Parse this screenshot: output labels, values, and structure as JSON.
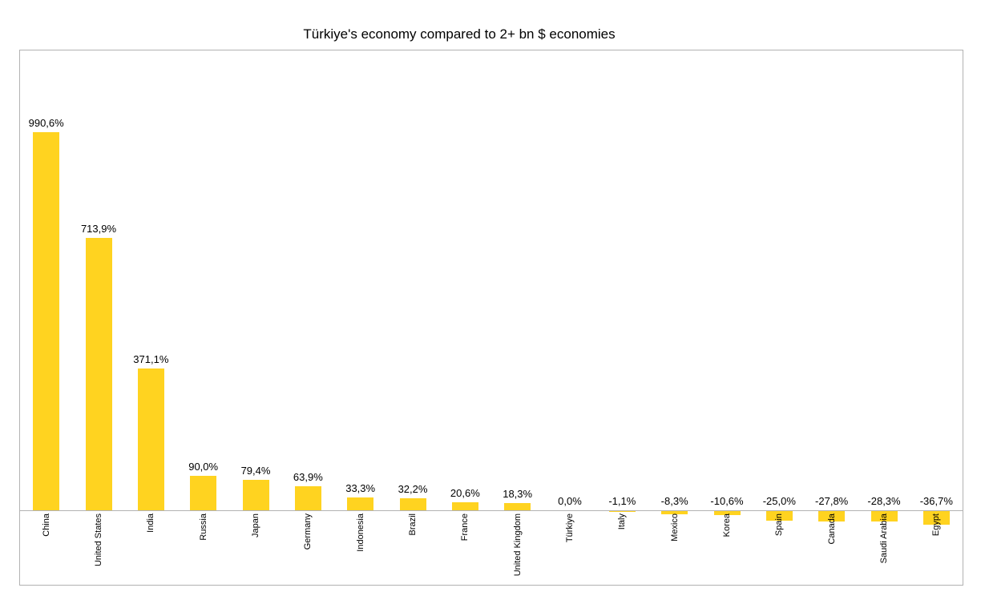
{
  "title": "Türkiye's economy compared to 2+ bn $ economies",
  "colors": {
    "bar": "#FFD320",
    "plot_border": "#B2B2B2",
    "axis_line": "#B2B2B2",
    "text": "#000000",
    "background": "#FFFFFF"
  },
  "chart_data": {
    "type": "bar",
    "title": "Türkiye's economy compared to 2+ bn $ economies",
    "categories": [
      "China",
      "United States",
      "India",
      "Russia",
      "Japan",
      "Germany",
      "Indonesia",
      "Brazil",
      "France",
      "United Kingdom",
      "Türkiye",
      "Italy",
      "Mexico",
      "Korea",
      "Spain",
      "Canada",
      "Saudi Arabia",
      "Egypt"
    ],
    "values": [
      990.6,
      713.9,
      371.1,
      90.0,
      79.4,
      63.9,
      33.3,
      32.2,
      20.6,
      18.3,
      0.0,
      -1.1,
      -8.3,
      -10.6,
      -25.0,
      -27.8,
      -28.3,
      -36.7
    ],
    "value_labels": [
      "990,6%",
      "713,9%",
      "371,1%",
      "90,0%",
      "79,4%",
      "63,9%",
      "33,3%",
      "32,2%",
      "20,6%",
      "18,3%",
      "0,0%",
      "-1,1%",
      "-8,3%",
      "-10,6%",
      "-25,0%",
      "-27,8%",
      "-28,3%",
      "-36,7%"
    ],
    "xlabel": "",
    "ylabel": "",
    "ylim": [
      -200,
      1205
    ],
    "grid": false,
    "legend": "none",
    "bar_color": "#FFD320",
    "value_label_position": "above bar / above axis for negatives",
    "category_label_rotation": "vertical, reading bottom to top"
  }
}
